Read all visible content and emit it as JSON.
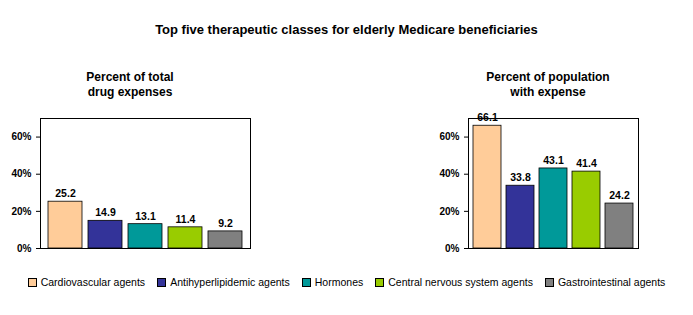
{
  "title": "Top five therapeutic classes for elderly Medicare beneficiaries",
  "chart_data": [
    {
      "type": "bar",
      "title": "Percent of total\ndrug expenses",
      "categories": [
        "Cardiovascular agents",
        "Antihyperlipidemic agents",
        "Hormones",
        "Central nervous system agents",
        "Gastrointestinal agents"
      ],
      "values": [
        25.2,
        14.9,
        13.1,
        11.4,
        9.2
      ],
      "colors": [
        "#ffcc99",
        "#333399",
        "#009999",
        "#99cc00",
        "#808080"
      ],
      "ylim": [
        0,
        70
      ],
      "yticks": [
        {
          "value": 0,
          "label": "0%"
        },
        {
          "value": 20,
          "label": "20%"
        },
        {
          "value": 40,
          "label": "40%"
        },
        {
          "value": 60,
          "label": "60%"
        }
      ],
      "data_labels": true,
      "tick_labels": "y",
      "legend": "bottom",
      "grid": false
    },
    {
      "type": "bar",
      "title": "Percent of population\nwith expense",
      "categories": [
        "Cardiovascular agents",
        "Antihyperlipidemic agents",
        "Hormones",
        "Central nervous system agents",
        "Gastrointestinal agents"
      ],
      "values": [
        66.1,
        33.8,
        43.1,
        41.4,
        24.2
      ],
      "colors": [
        "#ffcc99",
        "#333399",
        "#009999",
        "#99cc00",
        "#808080"
      ],
      "ylim": [
        0,
        70
      ],
      "yticks": [
        {
          "value": 0,
          "label": "0%"
        },
        {
          "value": 20,
          "label": "20%"
        },
        {
          "value": 40,
          "label": "40%"
        },
        {
          "value": 60,
          "label": "60%"
        }
      ],
      "data_labels": true,
      "tick_labels": "y",
      "legend": "bottom",
      "grid": false
    }
  ]
}
